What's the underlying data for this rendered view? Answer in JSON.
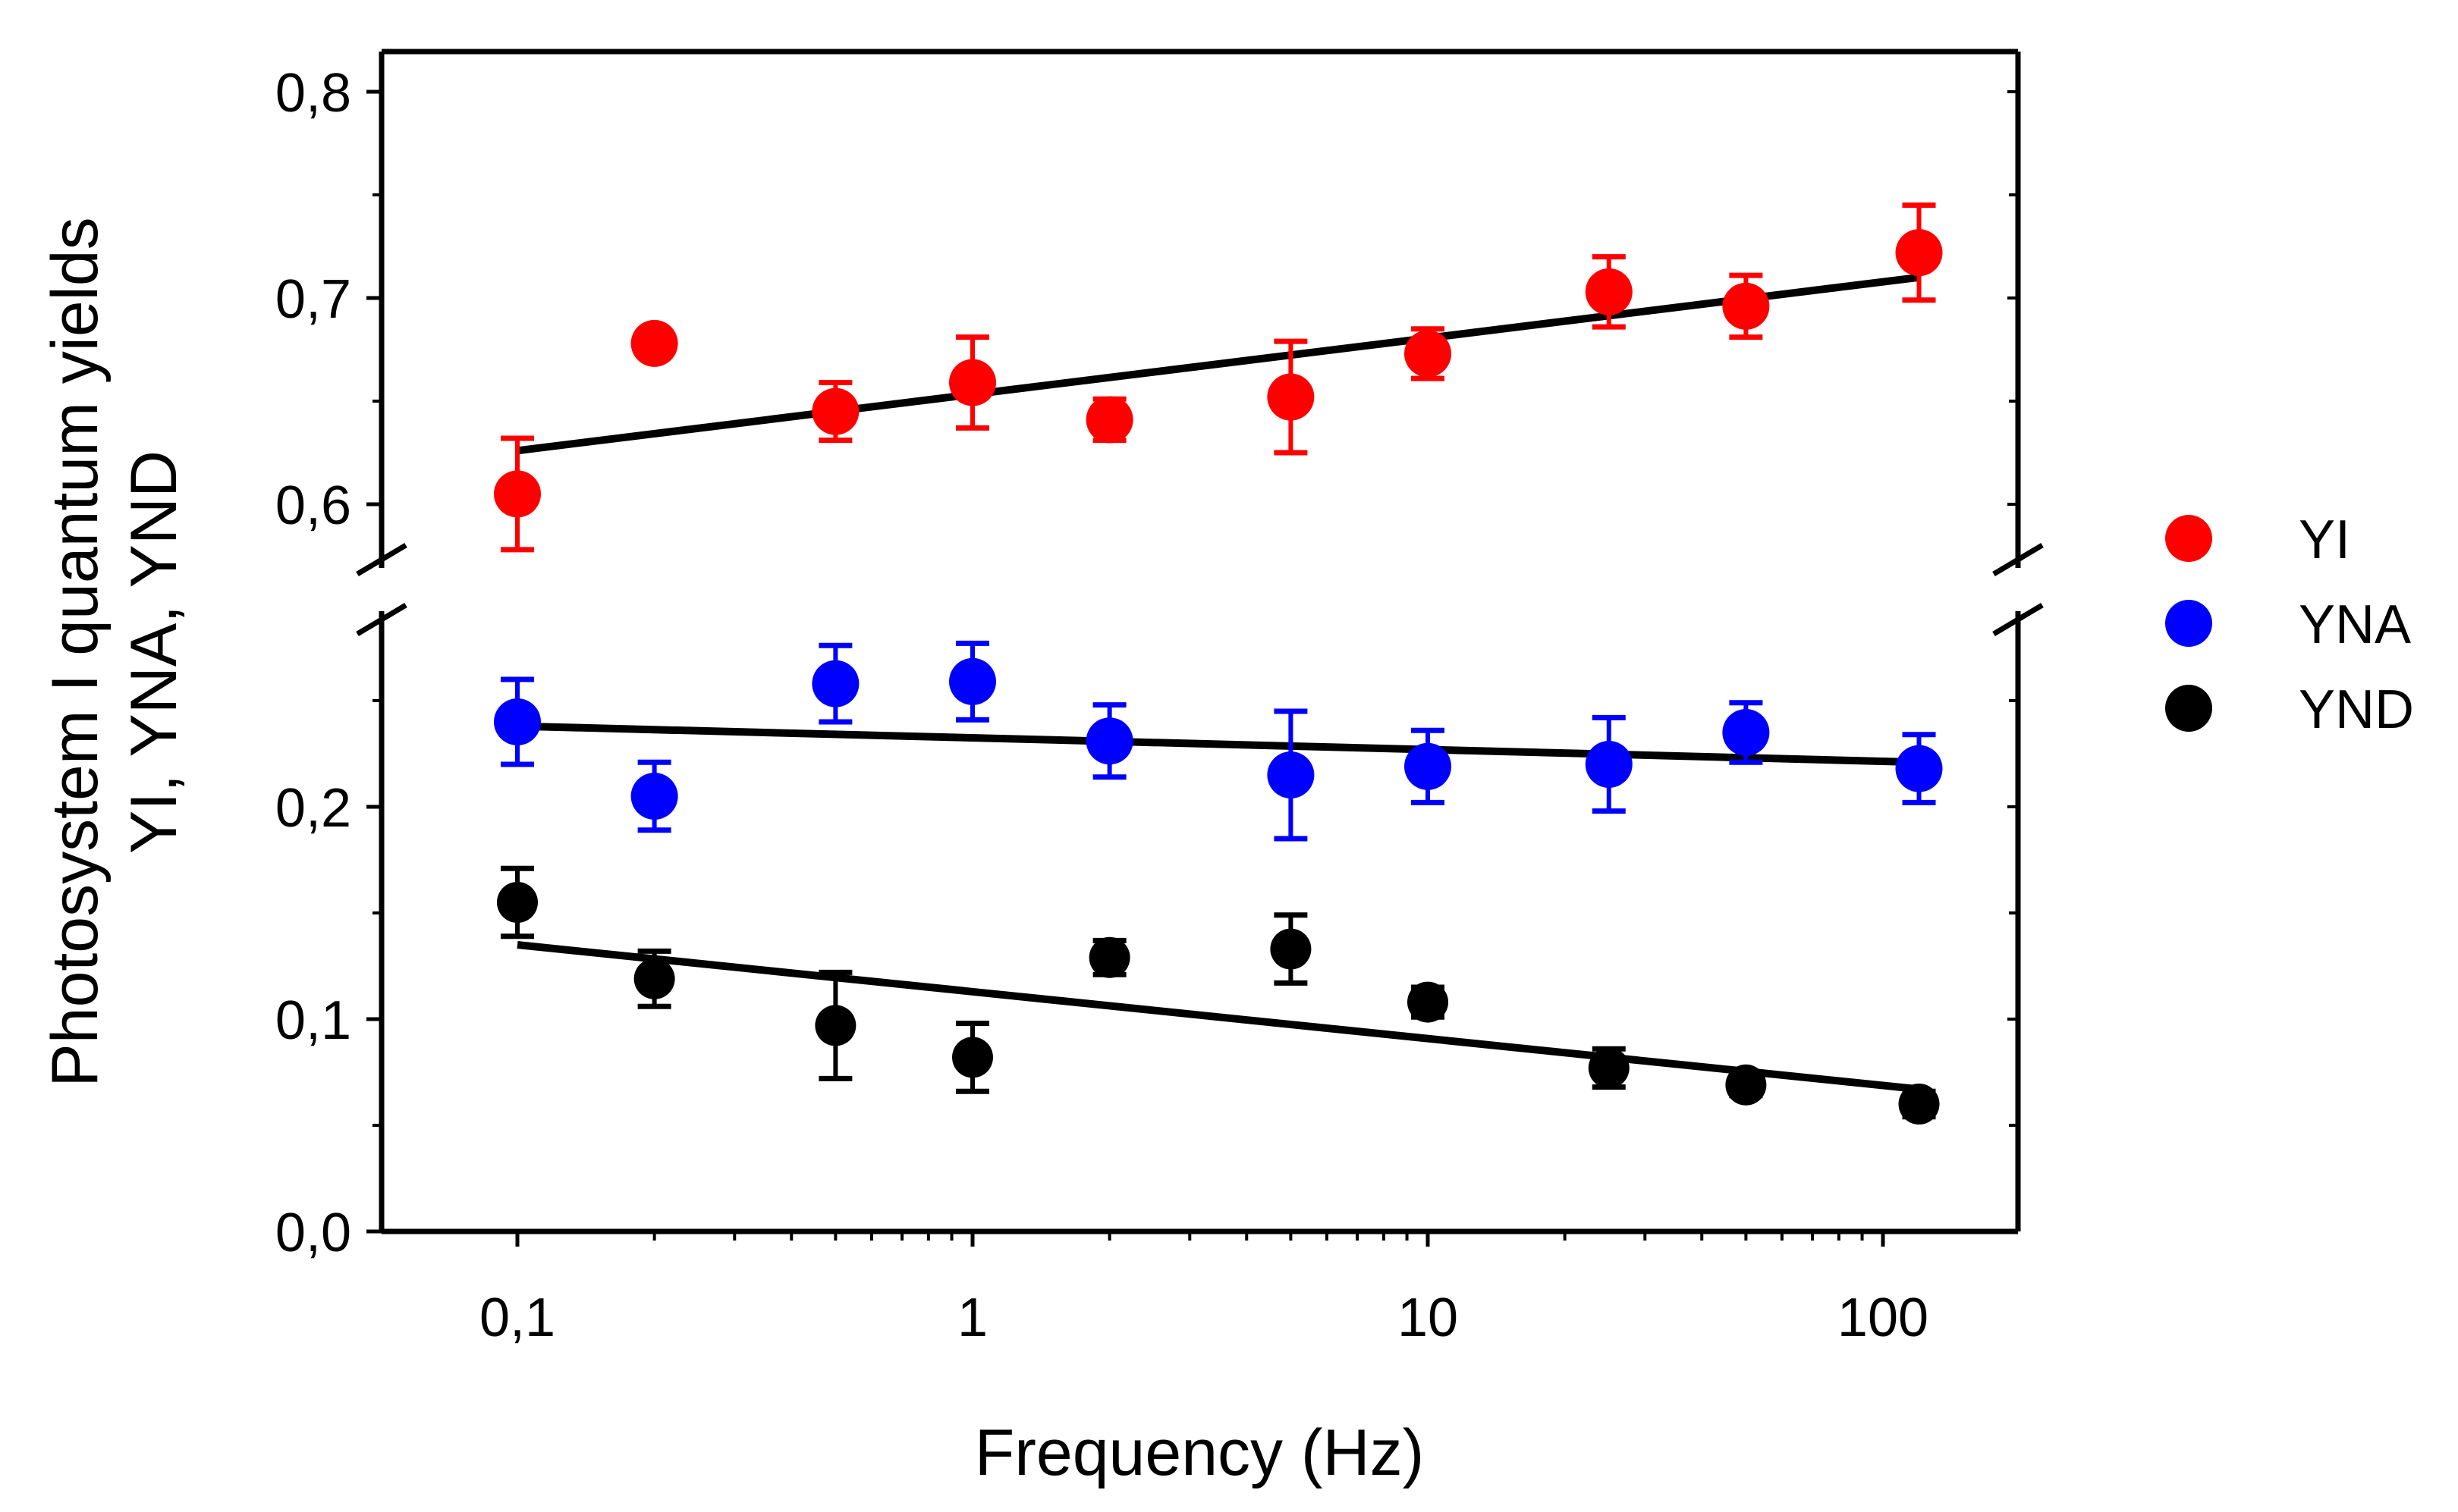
{
  "chart_data": {
    "type": "scatter",
    "xlabel": "Frequency (Hz)",
    "ylabel_lines": [
      "Photosystem I quantum yields",
      "YI, YNA, YND"
    ],
    "x_scale": "log",
    "x_ticks": [
      0.1,
      1,
      10,
      100
    ],
    "x_tick_labels": [
      "0,1",
      "1",
      "10",
      "100"
    ],
    "y_axis_break": true,
    "y_ticks_lower": [
      0.0,
      0.1,
      0.2
    ],
    "y_tick_labels_lower": [
      "0,0",
      "0,1",
      "0,2"
    ],
    "y_ticks_upper": [
      0.6,
      0.7,
      0.8
    ],
    "y_tick_labels_upper": [
      "0,6",
      "0,7",
      "0,8"
    ],
    "x_values": [
      0.1,
      0.2,
      0.5,
      1,
      2,
      5,
      10,
      25,
      50,
      120
    ],
    "legend_position": "right",
    "series": [
      {
        "name": "YI",
        "color": "#ff0000",
        "y": [
          0.605,
          0.678,
          0.645,
          0.659,
          0.641,
          0.652,
          0.673,
          0.703,
          0.696,
          0.722
        ],
        "err": [
          0.027,
          0,
          0.014,
          0.022,
          0.01,
          0.027,
          0.012,
          0.017,
          0.015,
          0.023
        ],
        "fit": {
          "x": [
            0.1,
            120
          ],
          "y": [
            0.626,
            0.71
          ]
        }
      },
      {
        "name": "YNA",
        "color": "#0000ff",
        "y": [
          0.24,
          0.205,
          0.258,
          0.259,
          0.231,
          0.215,
          0.219,
          0.22,
          0.235,
          0.218
        ],
        "err": [
          0.02,
          0.016,
          0.018,
          0.018,
          0.017,
          0.03,
          0.017,
          0.022,
          0.014,
          0.016
        ],
        "fit": {
          "x": [
            0.1,
            120
          ],
          "y": [
            0.238,
            0.221
          ]
        }
      },
      {
        "name": "YND",
        "color": "#000000",
        "y": [
          0.155,
          0.119,
          0.097,
          0.082,
          0.129,
          0.133,
          0.108,
          0.077,
          0.069,
          0.06
        ],
        "err": [
          0.016,
          0.013,
          0.025,
          0.016,
          0.008,
          0.016,
          0.007,
          0.009,
          0.005,
          0.006
        ],
        "fit": {
          "x": [
            0.1,
            120
          ],
          "y": [
            0.135,
            0.067
          ]
        }
      }
    ]
  }
}
